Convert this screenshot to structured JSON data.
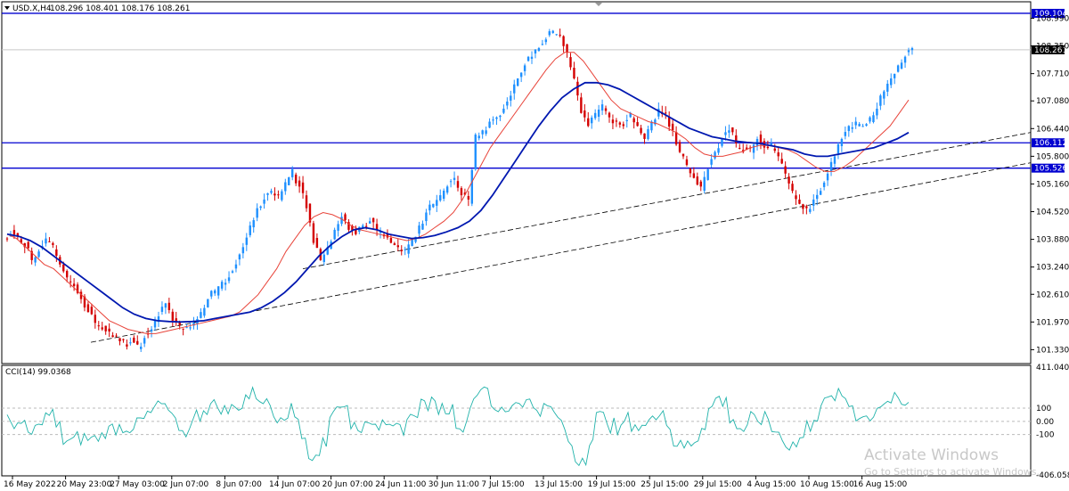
{
  "header": {
    "symbol": "USD.X,H4",
    "ohlc": "108.296 108.401 108.176 108.261"
  },
  "cci_label": "CCI(14) 99.0368",
  "watermark": {
    "title": "Activate Windows",
    "subtitle": "Go to Settings to activate Windows."
  },
  "colors": {
    "bull": "#1e90ff",
    "bear": "#d40000",
    "ma_fast": "#e8443a",
    "ma_slow": "#0018b0",
    "hline": "#0000d0",
    "cci": "#20b2aa",
    "label_bg": "#0000d0"
  },
  "chart_data": {
    "type": "candlestick",
    "price_axis": {
      "ylim": [
        101.05,
        109.35
      ],
      "ticks": [
        "108.990",
        "108.350",
        "107.710",
        "107.080",
        "106.440",
        "105.800",
        "105.160",
        "104.520",
        "103.880",
        "103.240",
        "102.610",
        "101.970",
        "101.330"
      ]
    },
    "x_ticks": [
      "16 May 2022",
      "20 May 23:00",
      "27 May 03:00",
      "2 Jun 07:00",
      "8 Jun 07:00",
      "14 Jun 07:00",
      "20 Jun 07:00",
      "24 Jun 11:00",
      "30 Jun 11:00",
      "7 Jul 15:00",
      "13 Jul 15:00",
      "19 Jul 15:00",
      "25 Jul 15:00",
      "29 Jul 15:00",
      "4 Aug 15:00",
      "10 Aug 15:00",
      "16 Aug 15:00"
    ],
    "current_price": "108.261",
    "current_price_value": 108.261,
    "horizontal_lines": [
      {
        "label": "109.104",
        "value": 109.104
      },
      {
        "label": "106.112",
        "value": 106.112
      },
      {
        "label": "105.526",
        "value": 105.526
      }
    ],
    "close_path": [
      104.0,
      103.95,
      103.7,
      103.4,
      103.6,
      103.9,
      103.75,
      103.3,
      103.0,
      102.8,
      102.5,
      102.2,
      101.95,
      101.8,
      101.75,
      101.65,
      101.55,
      101.5,
      101.45,
      101.6,
      101.8,
      102.1,
      102.4,
      102.0,
      101.9,
      101.85,
      101.95,
      102.2,
      102.5,
      102.7,
      102.9,
      103.0,
      103.3,
      103.7,
      104.2,
      104.6,
      104.8,
      105.0,
      104.9,
      105.2,
      105.5,
      105.1,
      104.6,
      103.8,
      103.4,
      103.7,
      104.1,
      104.4,
      104.1,
      104.0,
      104.2,
      104.3,
      104.1,
      103.95,
      103.8,
      103.7,
      103.65,
      103.9,
      104.2,
      104.5,
      104.7,
      104.9,
      105.1,
      105.3,
      104.9,
      104.8,
      106.3,
      106.4,
      106.6,
      106.7,
      106.9,
      107.2,
      107.6,
      107.9,
      108.1,
      108.3,
      108.5,
      108.7,
      108.6,
      108.2,
      107.6,
      106.8,
      106.5,
      106.8,
      107.0,
      106.7,
      106.6,
      106.5,
      106.8,
      106.5,
      106.2,
      106.6,
      106.9,
      106.8,
      106.4,
      105.9,
      105.6,
      105.3,
      105.1,
      105.5,
      105.9,
      106.2,
      106.4,
      106.1,
      105.9,
      106.0,
      106.2,
      106.0,
      106.1,
      105.8,
      105.4,
      105.0,
      104.7,
      104.6,
      104.8,
      105.0,
      105.4,
      105.8,
      106.2,
      106.5,
      106.6,
      106.5,
      106.7,
      106.9,
      107.3,
      107.6,
      107.9,
      108.1,
      108.3
    ],
    "ma_fast": [
      104.0,
      103.9,
      103.7,
      103.5,
      103.3,
      103.2,
      103.0,
      102.8,
      102.6,
      102.4,
      102.2,
      102.0,
      101.9,
      101.8,
      101.75,
      101.7,
      101.7,
      101.75,
      101.8,
      101.85,
      101.9,
      101.95,
      102.0,
      102.05,
      102.1,
      102.2,
      102.4,
      102.6,
      102.9,
      103.2,
      103.6,
      103.9,
      104.2,
      104.4,
      104.5,
      104.45,
      104.35,
      104.2,
      104.1,
      104.05,
      104.0,
      103.95,
      103.9,
      103.85,
      103.9,
      104.0,
      104.15,
      104.3,
      104.5,
      104.8,
      105.2,
      105.6,
      106.0,
      106.3,
      106.6,
      106.9,
      107.2,
      107.5,
      107.8,
      108.05,
      108.2,
      108.2,
      108.0,
      107.7,
      107.4,
      107.1,
      106.9,
      106.8,
      106.7,
      106.6,
      106.55,
      106.45,
      106.35,
      106.2,
      106.0,
      105.85,
      105.8,
      105.8,
      105.85,
      105.9,
      106.0,
      106.05,
      106.05,
      106.0,
      105.95,
      105.85,
      105.7,
      105.55,
      105.45,
      105.45,
      105.55,
      105.7,
      105.9,
      106.1,
      106.3,
      106.5,
      106.8,
      107.1
    ],
    "ma_slow": [
      104.0,
      103.95,
      103.85,
      103.7,
      103.5,
      103.3,
      103.1,
      102.9,
      102.7,
      102.5,
      102.3,
      102.15,
      102.05,
      102.0,
      101.98,
      101.97,
      101.98,
      102.0,
      102.05,
      102.1,
      102.15,
      102.2,
      102.3,
      102.45,
      102.65,
      102.9,
      103.2,
      103.5,
      103.75,
      103.95,
      104.1,
      104.15,
      104.1,
      104.0,
      103.95,
      103.9,
      103.92,
      103.97,
      104.05,
      104.15,
      104.3,
      104.55,
      104.9,
      105.3,
      105.7,
      106.1,
      106.5,
      106.85,
      107.15,
      107.35,
      107.5,
      107.5,
      107.45,
      107.35,
      107.2,
      107.05,
      106.9,
      106.75,
      106.6,
      106.45,
      106.35,
      106.25,
      106.2,
      106.15,
      106.12,
      106.1,
      106.05,
      106.0,
      105.95,
      105.85,
      105.8,
      105.8,
      105.85,
      105.9,
      105.95,
      106.0,
      106.1,
      106.2,
      106.35
    ],
    "trendlines": [
      {
        "from": [
          103.0,
          101.45
        ],
        "to": [
          103.0,
          101.45
        ]
      },
      {
        "note": "dashed"
      }
    ],
    "cci": {
      "label": "CCI(14) 99.0368",
      "ticks": [
        "411.0404",
        "100",
        "0.00",
        "-100",
        "-406.0581"
      ],
      "ylim": [
        -406.0581,
        411.0404
      ],
      "current": 99.0368
    }
  }
}
